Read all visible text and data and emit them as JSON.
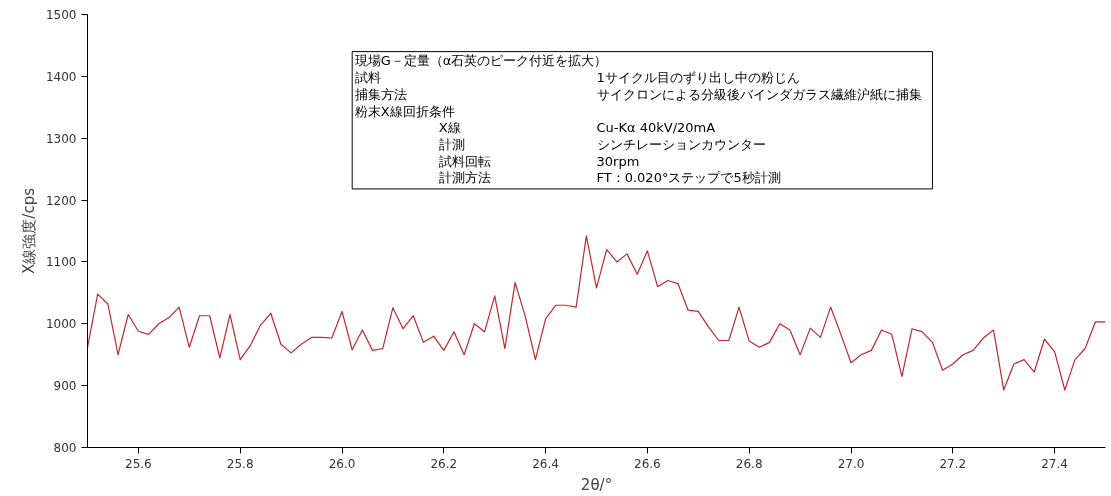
{
  "chart_data": {
    "type": "line",
    "xlabel": "2θ/°",
    "ylabel": "X線強度/cps",
    "x": [
      25.5,
      25.52,
      25.54,
      25.56,
      25.58,
      25.6,
      25.62,
      25.64,
      25.66,
      25.68,
      25.7,
      25.72,
      25.74,
      25.76,
      25.78,
      25.8,
      25.82,
      25.84,
      25.86,
      25.88,
      25.9,
      25.92,
      25.94,
      25.96,
      25.98,
      26.0,
      26.02,
      26.04,
      26.06,
      26.08,
      26.1,
      26.12,
      26.14,
      26.16,
      26.18,
      26.2,
      26.22,
      26.24,
      26.26,
      26.28,
      26.3,
      26.32,
      26.34,
      26.36,
      26.38,
      26.4,
      26.42,
      26.44,
      26.46,
      26.48,
      26.5,
      26.52,
      26.54,
      26.56,
      26.58,
      26.6,
      26.62,
      26.64,
      26.66,
      26.68,
      26.7,
      26.72,
      26.74,
      26.76,
      26.78,
      26.8,
      26.82,
      26.84,
      26.86,
      26.88,
      26.9,
      26.92,
      26.94,
      26.96,
      26.98,
      27.0,
      27.02,
      27.04,
      27.06,
      27.08,
      27.1,
      27.12,
      27.14,
      27.16,
      27.18,
      27.2,
      27.22,
      27.24,
      27.26,
      27.28,
      27.3,
      27.32,
      27.34,
      27.36,
      27.38,
      27.4,
      27.42,
      27.44,
      27.46,
      27.48,
      27.5
    ],
    "series": [
      {
        "color": "#c0282d",
        "values": [
          962,
          1048,
          1032,
          950,
          1015,
          988,
          983,
          1000,
          1010,
          1027,
          962,
          1013,
          1013,
          945,
          1015,
          942,
          965,
          998,
          1017,
          967,
          953,
          967,
          978,
          978,
          977,
          1020,
          958,
          990,
          957,
          960,
          1026,
          992,
          1013,
          970,
          980,
          957,
          987,
          950,
          1000,
          987,
          1045,
          960,
          1067,
          1012,
          942,
          1008,
          1030,
          1030,
          1027,
          1142,
          1058,
          1120,
          1100,
          1113,
          1080,
          1118,
          1060,
          1070,
          1065,
          1022,
          1020,
          995,
          973,
          973,
          1027,
          972,
          962,
          970,
          1000,
          990,
          950,
          993,
          978,
          1027,
          983,
          937,
          950,
          957,
          990,
          983,
          915,
          992,
          987,
          970,
          925,
          935,
          950,
          957,
          977,
          990,
          893,
          935,
          942,
          922,
          975,
          955,
          893,
          942,
          960,
          1003,
          1003
        ]
      }
    ],
    "xlim": [
      25.5,
      27.5
    ],
    "xticks": [
      {
        "value": 25.6,
        "label": "25.6"
      },
      {
        "value": 25.8,
        "label": "25.8"
      },
      {
        "value": 26.0,
        "label": "26.0"
      },
      {
        "value": 26.2,
        "label": "26.2"
      },
      {
        "value": 26.4,
        "label": "26.4"
      },
      {
        "value": 26.6,
        "label": "26.6"
      },
      {
        "value": 26.8,
        "label": "26.8"
      },
      {
        "value": 27.0,
        "label": "27.0"
      },
      {
        "value": 27.2,
        "label": "27.2"
      },
      {
        "value": 27.4,
        "label": "27.4"
      }
    ],
    "ylim": [
      800,
      1500
    ],
    "yticks": [
      800,
      900,
      1000,
      1100,
      1200,
      1300,
      1400,
      1500
    ],
    "grid": false,
    "marker": "none",
    "line_style": "solid",
    "annotations": [
      "現場G－定量（α石英のピーク付近を拡大）",
      "試料",
      "1サイクル目のずり出し中の粉じん",
      "捕集方法",
      "サイクロンによる分級後バインダガラス繊維沪紙に捕集",
      "粉末X線回折条件",
      "X線",
      "Cu-Kα  40kV/20mA",
      "計測",
      "シンチレーションカウンター",
      "試料回転",
      "30rpm",
      "計測方法",
      "FT：0.020°ステップで5秒計測"
    ]
  }
}
